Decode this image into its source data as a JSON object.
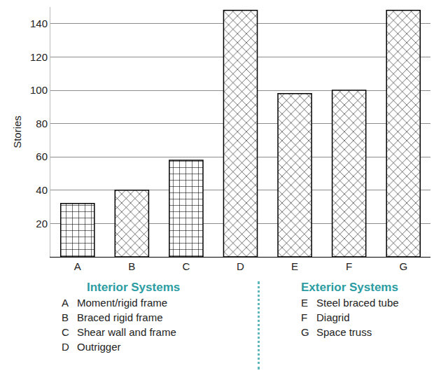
{
  "chart_data": {
    "type": "bar",
    "categories": [
      "A",
      "B",
      "C",
      "D",
      "E",
      "F",
      "G"
    ],
    "values": [
      32,
      40,
      58,
      148,
      98,
      100,
      148
    ],
    "color": "#ffffff",
    "ylabel": "Stories",
    "ylim": [
      0,
      150
    ],
    "yticks": [
      20,
      40,
      60,
      80,
      100,
      120,
      140
    ],
    "grid": true,
    "key": [
      {
        "title": "Interior Systems",
        "items": [
          {
            "letter": "A",
            "label": "Moment/rigid frame"
          },
          {
            "letter": "B",
            "label": "Braced rigid frame"
          },
          {
            "letter": "C",
            "label": "Shear wall and frame"
          },
          {
            "letter": "D",
            "label": "Outrigger"
          }
        ]
      },
      {
        "title": "Exterior Systems",
        "items": [
          {
            "letter": "E",
            "label": "Steel braced tube"
          },
          {
            "letter": "F",
            "label": "Diagrid"
          },
          {
            "letter": "G",
            "label": "Space truss"
          }
        ]
      }
    ]
  }
}
